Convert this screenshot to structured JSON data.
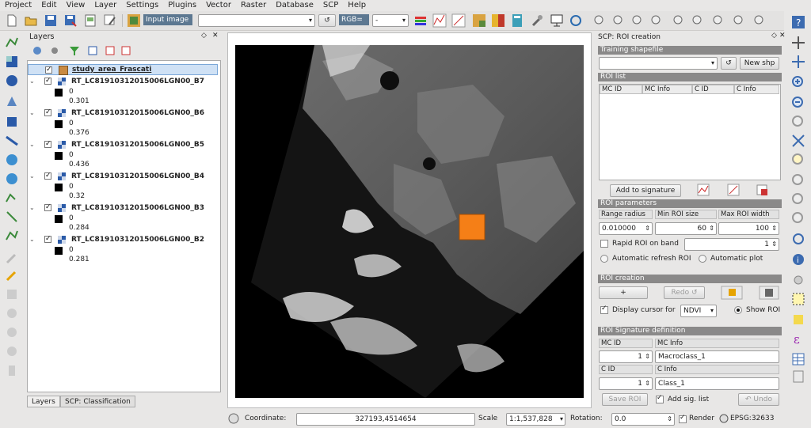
{
  "menu": [
    "Project",
    "Edit",
    "View",
    "Layer",
    "Settings",
    "Plugins",
    "Vector",
    "Raster",
    "Database",
    "SCP",
    "Help"
  ],
  "toolbar": {
    "input_image_label": "Input image",
    "input_image_value": "",
    "refresh_glyph": "↺",
    "rgb_label": "RGB=",
    "rgb_value": "-"
  },
  "layers_panel": {
    "title": "Layers",
    "items": [
      {
        "name": "study_area_Frascati",
        "type": "vector",
        "color": "#c98a42"
      },
      {
        "name": "RT_LC81910312015006LGN00_B7",
        "min": "0",
        "max": "0.301"
      },
      {
        "name": "RT_LC81910312015006LGN00_B6",
        "min": "0",
        "max": "0.376"
      },
      {
        "name": "RT_LC81910312015006LGN00_B5",
        "min": "0",
        "max": "0.436"
      },
      {
        "name": "RT_LC81910312015006LGN00_B4",
        "min": "0",
        "max": "0.32"
      },
      {
        "name": "RT_LC81910312015006LGN00_B3",
        "min": "0",
        "max": "0.284"
      },
      {
        "name": "RT_LC81910312015006LGN00_B2",
        "min": "0",
        "max": "0.281"
      }
    ],
    "tabs": [
      "Layers",
      "SCP: Classification"
    ]
  },
  "map": {
    "roi_color": "#f57f17"
  },
  "scp": {
    "title": "SCP: ROI creation",
    "training_section": "Training shapefile",
    "training_value": "",
    "new_shp_label": "New shp",
    "roi_list_section": "ROI list",
    "roi_list_columns": [
      "MC ID",
      "MC Info",
      "C ID",
      "C Info"
    ],
    "add_to_signature_label": "Add to signature",
    "roi_params_section": "ROI parameters",
    "range_radius_label": "Range radius",
    "min_roi_size_label": "Min ROI size",
    "max_roi_width_label": "Max ROI width",
    "range_radius_value": "0.010000",
    "min_roi_size_value": "60",
    "max_roi_width_value": "100",
    "rapid_roi_label": "Rapid ROI on band",
    "rapid_roi_band": "1",
    "auto_refresh_label": "Automatic refresh ROI",
    "auto_plot_label": "Automatic  plot",
    "roi_creation_section": "ROI creation",
    "plus_label": "+",
    "redo_label": "Redo ↺",
    "display_cursor_label": "Display cursor for",
    "display_cursor_value": "NDVI",
    "show_roi_label": "Show ROI",
    "sig_def_section": "ROI Signature definition",
    "mc_id_label": "MC ID",
    "mc_info_label": "MC Info",
    "mc_id_value": "1",
    "mc_info_value": "Macroclass_1",
    "c_id_label": "C ID",
    "c_info_label": "C Info",
    "c_id_value": "1",
    "c_info_value": "Class_1",
    "save_roi_label": "Save ROI",
    "add_sig_label": "Add sig. list",
    "undo_label": "↶ Undo"
  },
  "status": {
    "coordinate_label": "Coordinate:",
    "coordinate_value": "327193,4514654",
    "scale_label": "Scale",
    "scale_value": "1:1,537,828",
    "rotation_label": "Rotation:",
    "rotation_value": "0.0",
    "render_label": "Render",
    "epsg_label": "EPSG:32633"
  }
}
